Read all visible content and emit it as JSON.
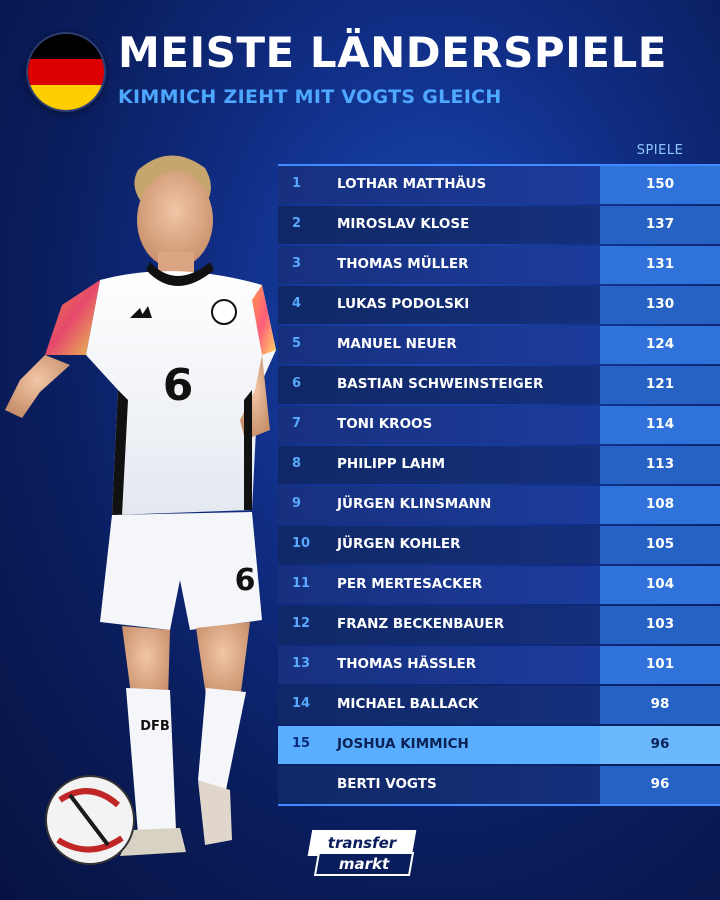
{
  "header": {
    "title": "MEISTE LÄNDERSPIELE",
    "subtitle": "KIMMICH ZIEHT MIT VOGTS GLEICH"
  },
  "flag_colors": [
    "#000000",
    "#dd0000",
    "#ffce00"
  ],
  "table": {
    "column_header": "SPIELE",
    "rows": [
      {
        "rank": "1",
        "name": "LOTHAR MATTHÄUS",
        "games": "150"
      },
      {
        "rank": "2",
        "name": "MIROSLAV KLOSE",
        "games": "137"
      },
      {
        "rank": "3",
        "name": "THOMAS MÜLLER",
        "games": "131"
      },
      {
        "rank": "4",
        "name": "LUKAS PODOLSKI",
        "games": "130"
      },
      {
        "rank": "5",
        "name": "MANUEL NEUER",
        "games": "124"
      },
      {
        "rank": "6",
        "name": "BASTIAN SCHWEINSTEIGER",
        "games": "121"
      },
      {
        "rank": "7",
        "name": "TONI KROOS",
        "games": "114"
      },
      {
        "rank": "8",
        "name": "PHILIPP LAHM",
        "games": "113"
      },
      {
        "rank": "9",
        "name": "JÜRGEN KLINSMANN",
        "games": "108"
      },
      {
        "rank": "10",
        "name": "JÜRGEN KOHLER",
        "games": "105"
      },
      {
        "rank": "11",
        "name": "PER MERTESACKER",
        "games": "104"
      },
      {
        "rank": "12",
        "name": "FRANZ BECKENBAUER",
        "games": "103"
      },
      {
        "rank": "13",
        "name": "THOMAS HÄSSLER",
        "games": "101"
      },
      {
        "rank": "14",
        "name": "MICHAEL BALLACK",
        "games": "98"
      },
      {
        "rank": "15",
        "name": "JOSHUA KIMMICH",
        "games": "96",
        "highlight": true
      },
      {
        "rank": "",
        "name": "BERTI VOGTS",
        "games": "96"
      }
    ]
  },
  "player": {
    "shirt_number": "6",
    "sponsor_text": "DFB"
  },
  "logo": {
    "top": "transfer",
    "bottom": "markt"
  },
  "colors": {
    "accent": "#4ea8ff",
    "highlight_row": "#5aaeff",
    "value_cell": "#2f72d9"
  }
}
